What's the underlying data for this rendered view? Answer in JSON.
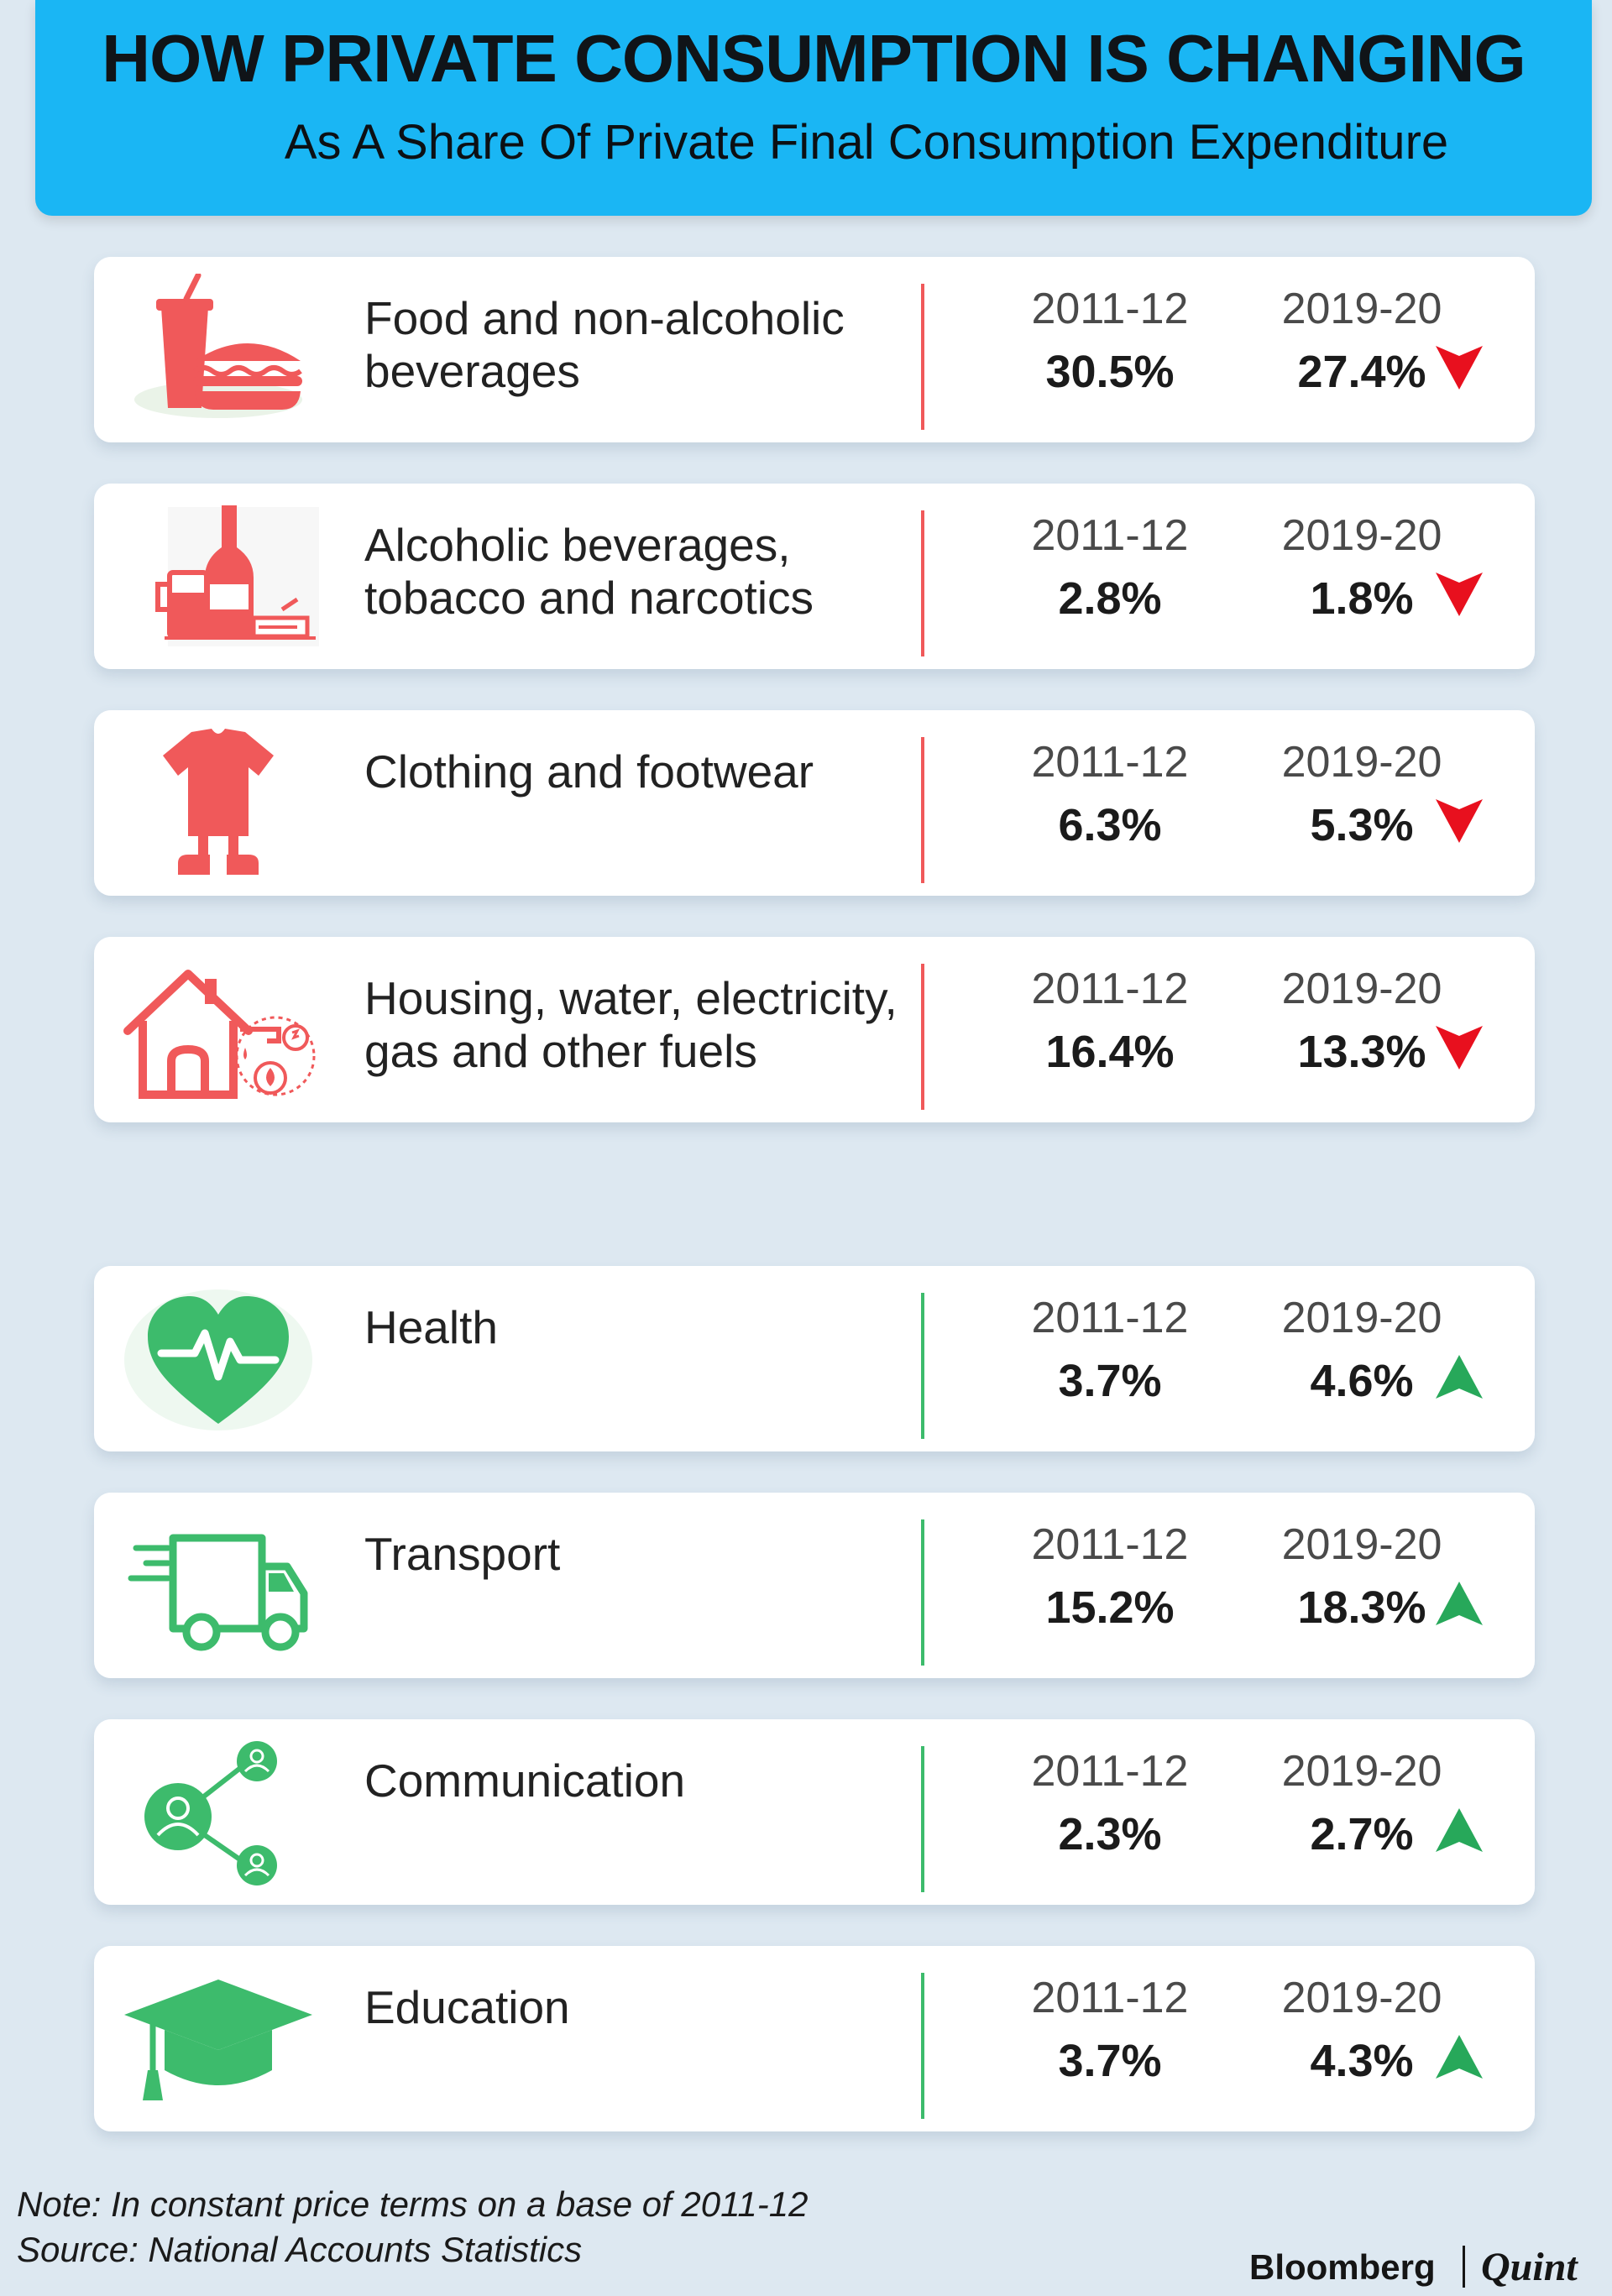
{
  "header": {
    "title": "HOW PRIVATE CONSUMPTION IS CHANGING",
    "subtitle": "As A Share Of Private Final Consumption Expenditure"
  },
  "colors": {
    "header_bg": "#1ab6f4",
    "decrease": "#f0595a",
    "increase": "#3dbb6c",
    "arrow_down": "#e8101e",
    "arrow_up": "#27a85a"
  },
  "chart_data": {
    "type": "table",
    "title": "HOW PRIVATE CONSUMPTION IS CHANGING",
    "subtitle": "As A Share Of Private Final Consumption Expenditure",
    "columns": [
      "2011-12",
      "2019-20"
    ],
    "rows": [
      {
        "category": "Food and non-alcoholic beverages",
        "label_lines": [
          "Food and non-alcoholic",
          "beverages"
        ],
        "icon": "food-icon",
        "y2011": "30.5%",
        "y2019": "27.4%",
        "trend": "down"
      },
      {
        "category": "Alcoholic beverages, tobacco and narcotics",
        "label_lines": [
          "Alcoholic beverages,",
          "tobacco and narcotics"
        ],
        "icon": "alcohol-tobacco-icon",
        "y2011": "2.8%",
        "y2019": "1.8%",
        "trend": "down"
      },
      {
        "category": "Clothing and footwear",
        "label_lines": [
          "Clothing and footwear"
        ],
        "icon": "clothing-icon",
        "y2011": "6.3%",
        "y2019": "5.3%",
        "trend": "down"
      },
      {
        "category": "Housing, water, electricity, gas and other fuels",
        "label_lines": [
          "Housing, water, electricity,",
          "gas and other fuels"
        ],
        "icon": "housing-icon",
        "y2011": "16.4%",
        "y2019": "13.3%",
        "trend": "down"
      },
      {
        "category": "Health",
        "label_lines": [
          "Health"
        ],
        "icon": "health-icon",
        "y2011": "3.7%",
        "y2019": "4.6%",
        "trend": "up"
      },
      {
        "category": "Transport",
        "label_lines": [
          "Transport"
        ],
        "icon": "transport-icon",
        "y2011": "15.2%",
        "y2019": "18.3%",
        "trend": "up"
      },
      {
        "category": "Communication",
        "label_lines": [
          "Communication"
        ],
        "icon": "communication-icon",
        "y2011": "2.3%",
        "y2019": "2.7%",
        "trend": "up"
      },
      {
        "category": "Education",
        "label_lines": [
          "Education"
        ],
        "icon": "education-icon",
        "y2011": "3.7%",
        "y2019": "4.3%",
        "trend": "up"
      }
    ]
  },
  "footer": {
    "note": "Note: In constant price terms on a base of 2011-12",
    "source": "Source: National Accounts Statistics",
    "brand_left": "Bloomberg",
    "brand_right": "Quint"
  }
}
